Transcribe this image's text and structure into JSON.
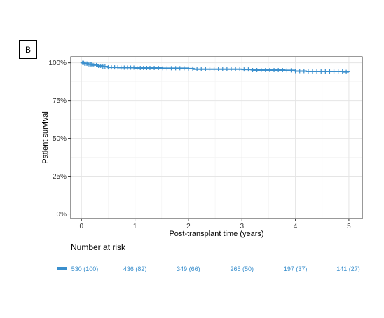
{
  "panel_label": "B",
  "colors": {
    "series": "#3a8fcd",
    "grid": "#e5e5e5",
    "axis": "#333333"
  },
  "chart_data": {
    "type": "line",
    "xlabel": "Post-transplant time (years)",
    "ylabel": "Patient survival",
    "xlim": [
      -0.2,
      5.25
    ],
    "ylim": [
      -0.03,
      1.04
    ],
    "x_ticks": [
      0,
      1,
      2,
      3,
      4,
      5
    ],
    "x_tick_labels": [
      "0",
      "1",
      "2",
      "3",
      "4",
      "5"
    ],
    "y_ticks": [
      0,
      0.25,
      0.5,
      0.75,
      1
    ],
    "y_tick_labels": [
      "0%",
      "25%",
      "50%",
      "75%",
      "100%"
    ],
    "grid": true,
    "series": [
      {
        "step": true,
        "x": [
          0,
          0.05,
          0.12,
          0.2,
          0.3,
          0.4,
          0.5,
          0.7,
          1.0,
          1.5,
          2.0,
          2.1,
          3.0,
          3.2,
          3.8,
          4.0,
          4.2,
          4.9,
          5.0
        ],
        "y": [
          1.0,
          0.995,
          0.99,
          0.985,
          0.98,
          0.975,
          0.97,
          0.968,
          0.966,
          0.964,
          0.962,
          0.958,
          0.956,
          0.952,
          0.95,
          0.945,
          0.943,
          0.94,
          0.938
        ],
        "censor_x": [
          0.02,
          0.04,
          0.06,
          0.09,
          0.11,
          0.14,
          0.17,
          0.19,
          0.22,
          0.25,
          0.28,
          0.32,
          0.36,
          0.4,
          0.44,
          0.5,
          0.56,
          0.62,
          0.68,
          0.74,
          0.8,
          0.86,
          0.92,
          0.98,
          1.04,
          1.1,
          1.16,
          1.22,
          1.28,
          1.36,
          1.44,
          1.52,
          1.6,
          1.68,
          1.76,
          1.84,
          1.92,
          2.0,
          2.08,
          2.16,
          2.24,
          2.32,
          2.4,
          2.48,
          2.56,
          2.64,
          2.72,
          2.8,
          2.88,
          2.96,
          3.04,
          3.12,
          3.2,
          3.28,
          3.36,
          3.44,
          3.52,
          3.6,
          3.68,
          3.76,
          3.84,
          3.92,
          4.0,
          4.08,
          4.16,
          4.24,
          4.32,
          4.4,
          4.48,
          4.56,
          4.64,
          4.72,
          4.8,
          4.88,
          4.95
        ]
      }
    ]
  },
  "risk_table": {
    "title": "Number at risk",
    "times": [
      0,
      1,
      2,
      3,
      4,
      5
    ],
    "cells": [
      "530 (100)",
      "436 (82)",
      "349 (66)",
      "265 (50)",
      "197 (37)",
      "141 (27)"
    ]
  }
}
